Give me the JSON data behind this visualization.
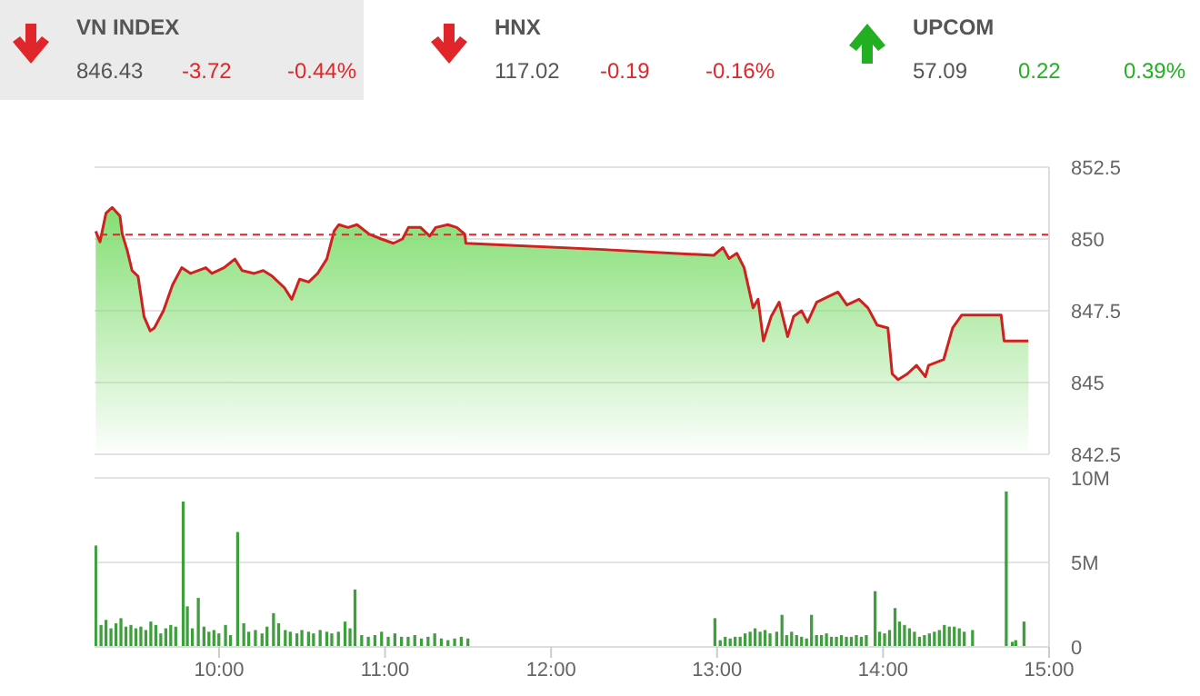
{
  "chart_data": [
    {
      "type": "other",
      "title": "VN INDEX",
      "annotations": [
        "846.43",
        "-3.72",
        "-0.44%"
      ],
      "colors": [
        "#555555",
        "#e0262a",
        "#e0262a"
      ]
    },
    {
      "type": "other",
      "title": "HNX",
      "annotations": [
        "117.02",
        "-0.19",
        "-0.16%"
      ],
      "colors": [
        "#555555",
        "#e0262a",
        "#e0262a"
      ]
    },
    {
      "type": "other",
      "title": "UPCOM",
      "annotations": [
        "57.09",
        "0.22",
        "0.39%"
      ],
      "colors": [
        "#555555",
        "#22b022",
        "#22b022"
      ]
    },
    {
      "type": "area",
      "xlim": [
        9.25,
        15
      ],
      "ylim": [
        842.5,
        852.5
      ],
      "yticks": [
        842.5,
        845,
        847.5,
        850,
        852.5
      ],
      "grid": "y",
      "tick_labels": "y",
      "ref_lines": [
        {
          "axis": "y",
          "value": 850.15,
          "color": "#e0262a",
          "line_style": "dashed"
        }
      ],
      "series": [
        {
          "color": "#d0201f",
          "x": [
            9.257,
            9.283,
            9.319,
            9.356,
            9.403,
            9.417,
            9.447,
            9.476,
            9.512,
            9.548,
            9.585,
            9.61,
            9.665,
            9.72,
            9.775,
            9.829,
            9.92,
            9.957,
            10.03,
            10.095,
            10.139,
            10.212,
            10.266,
            10.321,
            10.394,
            10.438,
            10.485,
            10.54,
            10.594,
            10.649,
            10.693,
            10.722,
            10.777,
            10.831,
            10.904,
            10.977,
            11.05,
            11.105,
            11.141,
            11.214,
            11.269,
            11.305,
            11.378,
            11.432,
            11.48,
            11.487,
            12.288,
            12.98,
            13.035,
            13.072,
            13.119,
            13.163,
            13.217,
            13.247,
            13.279,
            13.326,
            13.374,
            13.425,
            13.461,
            13.509,
            13.545,
            13.6,
            13.673,
            13.728,
            13.782,
            13.855,
            13.909,
            13.964,
            14.029,
            14.055,
            14.091,
            14.146,
            14.201,
            14.255,
            14.274,
            14.365,
            14.419,
            14.474,
            14.711,
            14.729,
            14.875
          ],
          "values": [
            850.27,
            849.9,
            850.9,
            851.1,
            850.8,
            850.17,
            849.6,
            848.9,
            848.7,
            847.3,
            846.8,
            846.9,
            847.5,
            848.4,
            849.0,
            848.8,
            849.0,
            848.8,
            849.0,
            849.3,
            848.9,
            848.8,
            848.9,
            848.7,
            848.3,
            847.9,
            848.6,
            848.5,
            848.8,
            849.3,
            850.27,
            850.5,
            850.4,
            850.5,
            850.17,
            850.0,
            849.85,
            850.0,
            850.4,
            850.4,
            850.1,
            850.4,
            850.5,
            850.4,
            850.17,
            849.85,
            849.64,
            849.43,
            849.7,
            849.32,
            849.5,
            849.0,
            847.6,
            847.9,
            846.45,
            847.3,
            847.8,
            846.6,
            847.3,
            847.5,
            847.1,
            847.8,
            848.0,
            848.15,
            847.7,
            847.9,
            847.6,
            847.0,
            846.9,
            845.3,
            845.1,
            845.3,
            845.6,
            845.2,
            845.6,
            845.8,
            846.9,
            847.35,
            847.35,
            846.45,
            846.45
          ]
        }
      ]
    },
    {
      "type": "bar",
      "xlim": [
        9.25,
        15
      ],
      "xticks": [
        {
          "value": 10,
          "label": "10:00"
        },
        {
          "value": 11,
          "label": "11:00"
        },
        {
          "value": 12,
          "label": "12:00"
        },
        {
          "value": 13,
          "label": "13:00"
        },
        {
          "value": 14,
          "label": "14:00"
        },
        {
          "value": 15,
          "label": "15:00"
        }
      ],
      "ylim": [
        0,
        10
      ],
      "yticks": [
        0,
        {
          "value": 5,
          "label": "5M"
        },
        {
          "value": 10,
          "label": "10M"
        }
      ],
      "grid": "y",
      "series": [
        {
          "color": "#3f9f3f",
          "x": [
            9.258,
            9.29,
            9.32,
            9.35,
            9.38,
            9.41,
            9.44,
            9.47,
            9.5,
            9.53,
            9.56,
            9.59,
            9.62,
            9.65,
            9.68,
            9.71,
            9.74,
            9.785,
            9.81,
            9.84,
            9.876,
            9.91,
            9.94,
            9.97,
            10.0,
            10.04,
            10.07,
            10.113,
            10.15,
            10.18,
            10.22,
            10.26,
            10.29,
            10.329,
            10.36,
            10.4,
            10.43,
            10.47,
            10.5,
            10.54,
            10.57,
            10.61,
            10.65,
            10.68,
            10.72,
            10.76,
            10.79,
            10.82,
            10.86,
            10.9,
            10.94,
            10.98,
            11.02,
            11.06,
            11.1,
            11.14,
            11.18,
            11.22,
            11.26,
            11.3,
            11.34,
            11.38,
            11.42,
            11.46,
            11.5,
            12.988,
            13.02,
            13.05,
            13.08,
            13.11,
            13.14,
            13.17,
            13.2,
            13.23,
            13.26,
            13.29,
            13.32,
            13.36,
            13.392,
            13.42,
            13.45,
            13.48,
            13.51,
            13.54,
            13.57,
            13.6,
            13.63,
            13.66,
            13.69,
            13.72,
            13.75,
            13.78,
            13.81,
            13.84,
            13.87,
            13.9,
            13.953,
            13.98,
            14.01,
            14.04,
            14.073,
            14.1,
            14.13,
            14.16,
            14.19,
            14.22,
            14.25,
            14.28,
            14.31,
            14.34,
            14.37,
            14.4,
            14.43,
            14.46,
            14.49,
            14.54,
            14.743,
            14.78,
            14.8,
            14.85
          ],
          "values": [
            6.0,
            1.3,
            1.6,
            1.1,
            1.4,
            1.7,
            1.2,
            1.3,
            1.1,
            1.2,
            1.0,
            1.5,
            1.3,
            0.8,
            1.1,
            1.3,
            1.2,
            8.6,
            2.4,
            1.1,
            2.9,
            1.2,
            0.9,
            1.0,
            0.8,
            1.3,
            0.7,
            6.8,
            1.4,
            0.9,
            1.0,
            0.8,
            1.2,
            2.0,
            1.4,
            1.0,
            0.9,
            0.8,
            1.0,
            0.9,
            0.8,
            1.0,
            0.9,
            0.8,
            0.9,
            1.5,
            1.1,
            3.4,
            0.7,
            0.6,
            0.7,
            0.9,
            0.6,
            0.8,
            0.6,
            0.6,
            0.7,
            0.5,
            0.6,
            0.8,
            0.5,
            0.4,
            0.5,
            0.6,
            0.5,
            1.7,
            0.4,
            0.6,
            0.5,
            0.6,
            0.6,
            0.8,
            0.9,
            1.1,
            0.9,
            1.0,
            0.8,
            0.9,
            1.9,
            0.7,
            0.9,
            0.7,
            0.6,
            0.5,
            1.9,
            0.7,
            0.7,
            0.8,
            0.6,
            0.6,
            0.7,
            0.6,
            0.6,
            0.7,
            0.6,
            0.7,
            3.3,
            0.9,
            0.8,
            1.0,
            2.3,
            1.5,
            1.3,
            1.1,
            0.9,
            0.6,
            0.7,
            0.8,
            0.9,
            1.0,
            1.3,
            1.2,
            1.2,
            1.1,
            0.9,
            1.0,
            9.2,
            0.3,
            0.4,
            1.5
          ]
        }
      ]
    }
  ]
}
